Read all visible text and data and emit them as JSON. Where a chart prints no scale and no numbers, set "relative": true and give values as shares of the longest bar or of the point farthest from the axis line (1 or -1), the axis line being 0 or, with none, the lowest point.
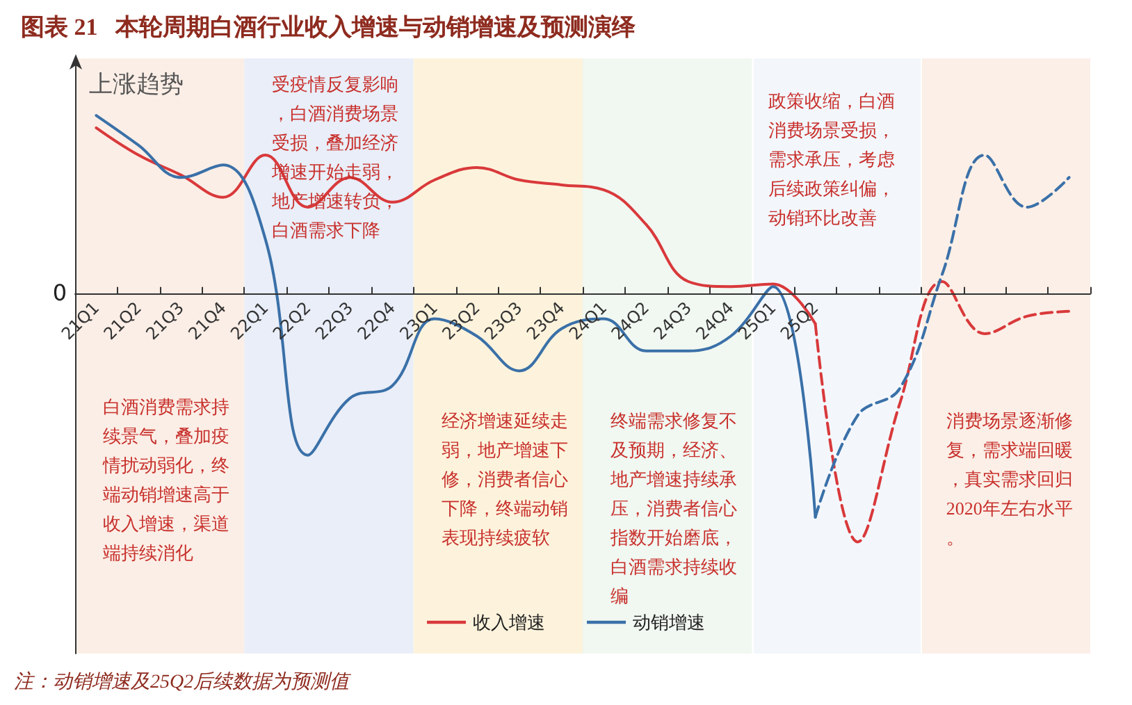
{
  "chart_data": {
    "type": "line",
    "title": "图表 21   本轮周期白酒行业收入增速与动销增速及预测演绎",
    "ylabel": "上涨趋势",
    "relative": true,
    "marker": "none",
    "legend": "bottom",
    "grid": false,
    "categories": [
      "21Q1",
      "21Q2",
      "21Q3",
      "21Q4",
      "22Q1",
      "22Q2",
      "22Q3",
      "22Q4",
      "23Q1",
      "23Q2",
      "23Q3",
      "23Q4",
      "24Q1",
      "24Q2",
      "24Q3",
      "24Q4",
      "25Q1",
      "25Q2",
      null,
      null,
      null,
      null,
      null,
      null
    ],
    "series": [
      {
        "name": "收入增速",
        "color": "#d9393b",
        "line_style": "solid",
        "values": [
          0.67,
          0.56,
          0.48,
          0.39,
          0.56,
          0.35,
          0.47,
          0.37,
          0.46,
          0.51,
          0.46,
          0.44,
          0.42,
          0.28,
          0.05,
          0.03,
          0.04,
          -0.12,
          null,
          null,
          null,
          null,
          null,
          null
        ]
      },
      {
        "name": "动销增速",
        "color": "#3a70a8",
        "line_style": "solid",
        "values": [
          0.72,
          0.6,
          0.47,
          0.52,
          0.22,
          -0.65,
          -0.42,
          -0.37,
          -0.1,
          -0.17,
          -0.31,
          -0.14,
          -0.1,
          -0.23,
          -0.23,
          -0.17,
          0.03,
          -0.9,
          null,
          null,
          null,
          null,
          null,
          null
        ]
      },
      {
        "color": "#d9393b",
        "line_style": "dashed",
        "values": [
          null,
          null,
          null,
          null,
          null,
          null,
          null,
          null,
          null,
          null,
          null,
          null,
          null,
          null,
          null,
          null,
          null,
          -0.12,
          -1,
          -0.44,
          0.05,
          -0.16,
          -0.09,
          -0.07
        ]
      },
      {
        "color": "#3a70a8",
        "line_style": "dashed",
        "values": [
          null,
          null,
          null,
          null,
          null,
          null,
          null,
          null,
          null,
          null,
          null,
          null,
          null,
          null,
          null,
          null,
          null,
          -0.9,
          -0.49,
          -0.38,
          0.08,
          0.56,
          0.35,
          0.47
        ]
      }
    ],
    "bands": [
      {
        "axis": "x",
        "from": "21Q1",
        "to": "21Q4",
        "color": "#fbeee6",
        "label": "白酒消费需求持续景气，叠加疫情扰动弱化，终端动销增速高于收入增速，渠道端持续消化"
      },
      {
        "axis": "x",
        "from": "22Q1",
        "to": "22Q4",
        "color": "#e9eef8",
        "label": "受疫情反复影响，白酒消费场景受损，叠加经济增速开始走弱，地产增速转负，白酒需求下降"
      },
      {
        "axis": "x",
        "from": "23Q1",
        "to": "23Q4",
        "color": "#fdf3dc",
        "label": "经济增速延续走弱，地产增速下修，消费者信心下降，终端动销表现持续疲软"
      },
      {
        "axis": "x",
        "from": "24Q1",
        "to": "24Q4",
        "color": "#f1f7f1",
        "label": "终端需求修复不及预期，经济、地产增速持续承压，消费者信心指数开始磨底，白酒需求持续收编"
      }
    ],
    "annotations": [
      "0",
      "政策收缩，白酒消费场景受损，需求承压，考虑后续政策纠偏，动销环比改善",
      "消费场景逐渐修复，需求端回暖，真实需求回归2020年左右水平。",
      "注：动销增速及25Q2后续数据为预测值"
    ]
  }
}
